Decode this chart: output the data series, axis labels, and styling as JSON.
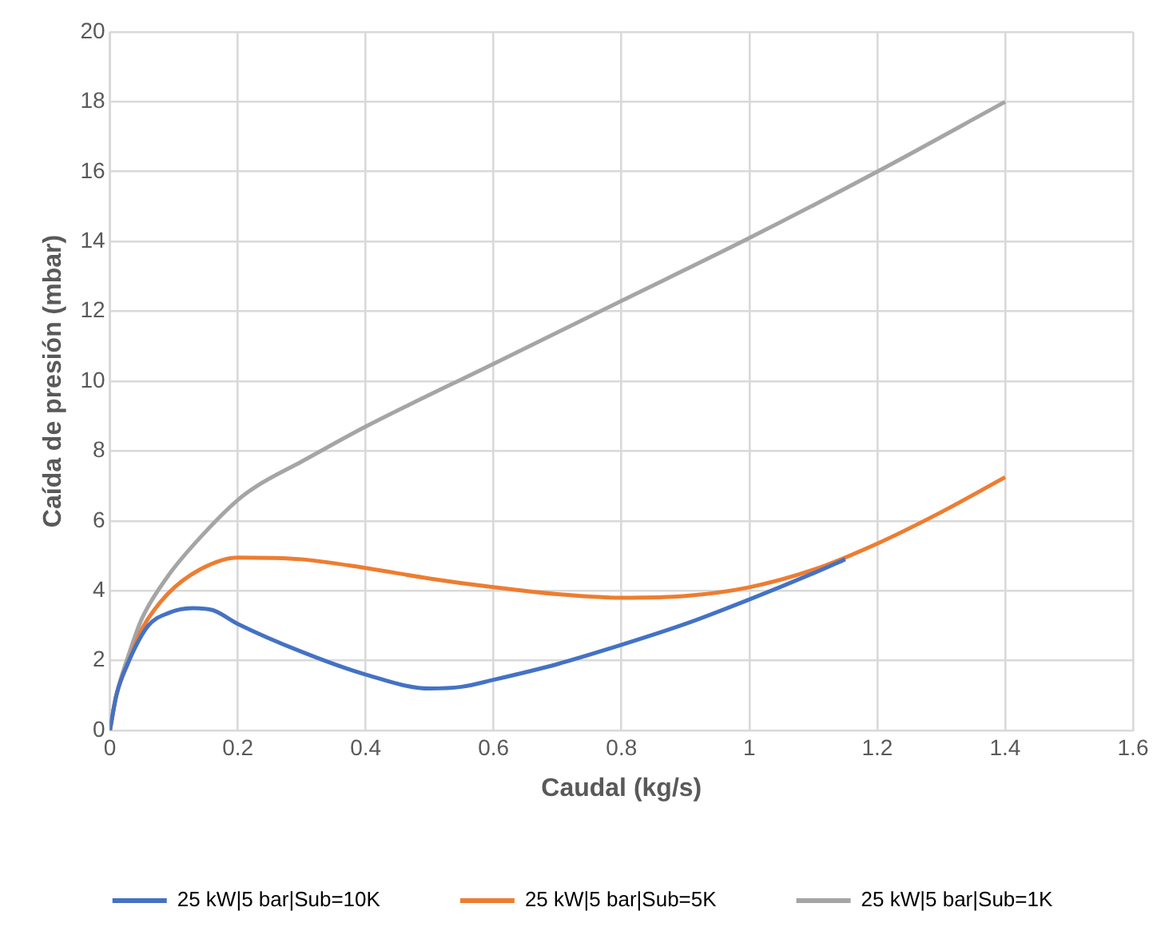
{
  "chart_data": {
    "type": "line",
    "xlabel": "Caudal (kg/s)",
    "ylabel": "Caída de presión (mbar)",
    "xlim": [
      0,
      1.6
    ],
    "xticks": [
      0,
      {
        "value": 0.2,
        "label": "0.2"
      },
      {
        "value": 0.4,
        "label": "0.4"
      },
      {
        "value": 0.6,
        "label": "0.6"
      },
      {
        "value": 0.8,
        "label": "0.8"
      },
      1,
      {
        "value": 1.2,
        "label": "1.2"
      },
      {
        "value": 1.4,
        "label": "1.4"
      },
      {
        "value": 1.6,
        "label": "1.6"
      }
    ],
    "ylim": [
      0,
      20
    ],
    "yticks": [
      0,
      2,
      4,
      6,
      8,
      10,
      12,
      14,
      16,
      18,
      20
    ],
    "grid": true,
    "legend": "bottom",
    "marker": "none",
    "line_style": "solid",
    "series": [
      {
        "name": "25 kW|5 bar|Sub=10K",
        "color": "#4472c4",
        "x": [
          0,
          0.01,
          0.03,
          0.06,
          0.09,
          0.13,
          0.16,
          0.2,
          0.3,
          0.4,
          0.5,
          0.55,
          0.6,
          0.7,
          0.8,
          0.9,
          1.0,
          1.1,
          1.15
        ],
        "values": [
          0,
          1,
          2,
          3,
          3.35,
          3.5,
          3.45,
          3.05,
          2.25,
          1.6,
          1.2,
          1.25,
          1.45,
          1.9,
          2.45,
          3.05,
          3.75,
          4.5,
          4.9
        ]
      },
      {
        "name": "25 kW|5 bar|Sub=5K",
        "color": "#ed7d31",
        "x": [
          0,
          0.01,
          0.03,
          0.05,
          0.09,
          0.14,
          0.2,
          0.3,
          0.4,
          0.5,
          0.6,
          0.7,
          0.8,
          0.9,
          1.0,
          1.1,
          1.2,
          1.3,
          1.4
        ],
        "values": [
          0,
          1,
          2,
          2.9,
          3.9,
          4.6,
          4.95,
          4.9,
          4.65,
          4.35,
          4.1,
          3.9,
          3.8,
          3.85,
          4.1,
          4.6,
          5.35,
          6.25,
          7.25
        ]
      },
      {
        "name": "25 kW|5 bar|Sub=1K",
        "color": "#a5a5a5",
        "x": [
          0,
          0.01,
          0.03,
          0.05,
          0.09,
          0.14,
          0.2,
          0.23,
          0.3,
          0.4,
          0.6,
          0.8,
          1.0,
          1.2,
          1.4
        ],
        "values": [
          0,
          1,
          2.2,
          3.2,
          4.4,
          5.5,
          6.6,
          7,
          7.7,
          8.7,
          10.5,
          12.3,
          14.1,
          16,
          18
        ]
      }
    ]
  }
}
